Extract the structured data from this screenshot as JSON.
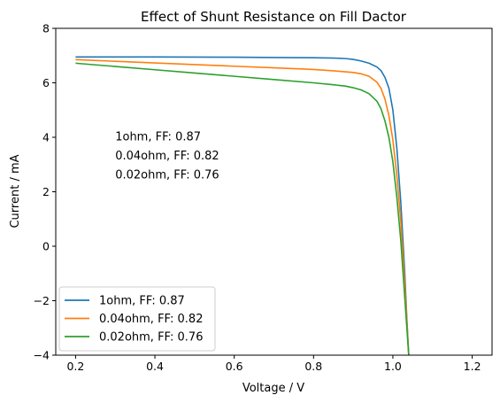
{
  "chart_data": {
    "type": "line",
    "title": "Effect of Shunt Resistance on Fill Dactor",
    "xlabel": "Voltage / V",
    "ylabel": "Current / mA",
    "xlim": [
      0.15,
      1.25
    ],
    "ylim": [
      -4,
      8
    ],
    "xticks": [
      0.2,
      0.4,
      0.6,
      0.8,
      1.0,
      1.2
    ],
    "xtick_labels": [
      "0.2",
      "0.4",
      "0.6",
      "0.8",
      "1.0",
      "1.2"
    ],
    "yticks": [
      -4,
      -2,
      0,
      2,
      4,
      6,
      8
    ],
    "ytick_labels": [
      "−4",
      "−2",
      "0",
      "2",
      "4",
      "6",
      "8"
    ],
    "grid": false,
    "legend_position": "lower-left",
    "series": [
      {
        "name": "1ohm, FF: 0.87",
        "color": "#1f77b4",
        "x": [
          0.2,
          0.4,
          0.6,
          0.7,
          0.8,
          0.85,
          0.88,
          0.9,
          0.92,
          0.94,
          0.96,
          0.97,
          0.98,
          0.99,
          1.0,
          1.01,
          1.02,
          1.03,
          1.035,
          1.04
        ],
        "y": [
          6.95,
          6.95,
          6.94,
          6.93,
          6.92,
          6.91,
          6.89,
          6.86,
          6.8,
          6.72,
          6.58,
          6.45,
          6.2,
          5.8,
          5.0,
          3.6,
          1.6,
          -1.0,
          -2.6,
          -4.0
        ]
      },
      {
        "name": "0.04ohm, FF: 0.82",
        "color": "#ff7f0e",
        "x": [
          0.2,
          0.3,
          0.4,
          0.5,
          0.6,
          0.7,
          0.8,
          0.85,
          0.9,
          0.92,
          0.94,
          0.96,
          0.97,
          0.98,
          0.99,
          1.0,
          1.01,
          1.02,
          1.03,
          1.04
        ],
        "y": [
          6.85,
          6.79,
          6.73,
          6.67,
          6.61,
          6.55,
          6.49,
          6.44,
          6.38,
          6.33,
          6.24,
          6.02,
          5.8,
          5.4,
          4.8,
          3.9,
          2.6,
          0.9,
          -1.4,
          -4.0
        ]
      },
      {
        "name": "0.02ohm, FF: 0.76",
        "color": "#2ca02c",
        "x": [
          0.2,
          0.3,
          0.4,
          0.5,
          0.6,
          0.7,
          0.8,
          0.85,
          0.88,
          0.9,
          0.92,
          0.94,
          0.96,
          0.97,
          0.98,
          0.99,
          1.0,
          1.01,
          1.02,
          1.03,
          1.04
        ],
        "y": [
          6.72,
          6.6,
          6.48,
          6.36,
          6.24,
          6.12,
          6.0,
          5.93,
          5.88,
          5.82,
          5.74,
          5.6,
          5.32,
          5.05,
          4.6,
          4.0,
          3.1,
          1.8,
          0.2,
          -1.9,
          -4.0
        ]
      }
    ],
    "annotations": [
      {
        "text": "1ohm, FF: 0.87",
        "x": 0.3,
        "y": 4.0
      },
      {
        "text": "0.04ohm, FF: 0.82",
        "x": 0.3,
        "y": 3.3
      },
      {
        "text": "0.02ohm, FF: 0.76",
        "x": 0.3,
        "y": 2.6
      }
    ]
  }
}
